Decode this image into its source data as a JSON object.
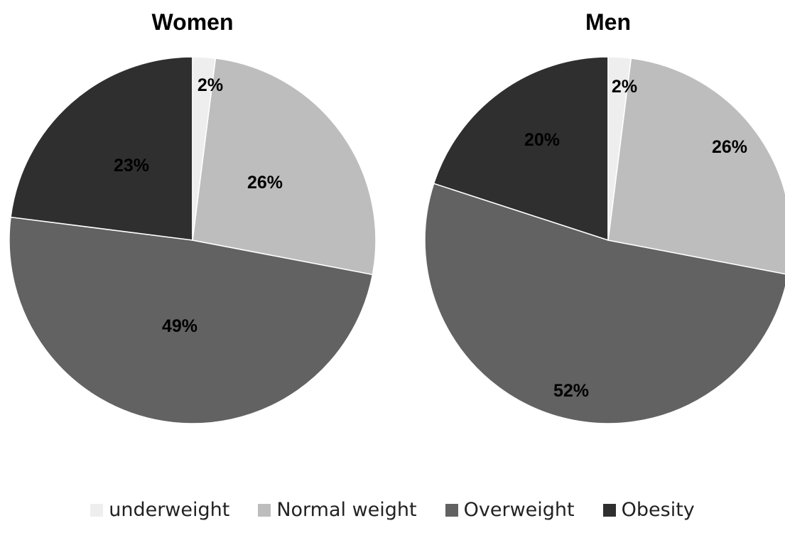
{
  "chart_data": [
    {
      "type": "pie",
      "title": "Women",
      "labels": [
        "underweight",
        "Normal weight",
        "Overweight",
        "Obesity"
      ],
      "values": [
        2,
        26,
        49,
        23
      ],
      "value_labels": [
        "2%",
        "26%",
        "49%",
        "23%"
      ],
      "colors": [
        "#eeeeee",
        "#bdbdbd",
        "#626262",
        "#2f2f2f"
      ]
    },
    {
      "type": "pie",
      "title": "Men",
      "labels": [
        "underweight",
        "Normal weight",
        "Overweight",
        "Obesity"
      ],
      "values": [
        2,
        26,
        52,
        20
      ],
      "value_labels": [
        "2%",
        "26%",
        "52%",
        "20%"
      ],
      "colors": [
        "#eeeeee",
        "#bdbdbd",
        "#626262",
        "#2f2f2f"
      ]
    }
  ],
  "legend": {
    "placement": "bottom",
    "items": [
      {
        "label": "underweight",
        "color": "#eeeeee"
      },
      {
        "label": "Normal weight",
        "color": "#bdbdbd"
      },
      {
        "label": "Overweight",
        "color": "#626262"
      },
      {
        "label": "Obesity",
        "color": "#2f2f2f"
      }
    ]
  }
}
